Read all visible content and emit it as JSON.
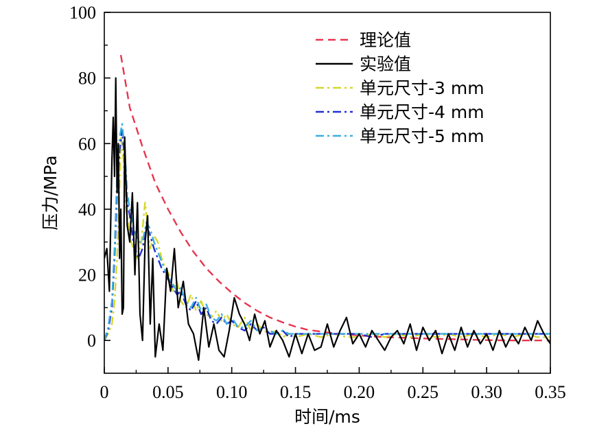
{
  "chart_data": {
    "type": "line",
    "xlabel": "时间/ms",
    "ylabel": "压力/MPa",
    "xlim": [
      0,
      0.35
    ],
    "ylim": [
      -10,
      100
    ],
    "xticks": [
      0,
      0.05,
      0.1,
      0.15,
      0.2,
      0.25,
      0.3,
      0.35
    ],
    "xtick_labels": [
      "0",
      "0.05",
      "0.10",
      "0.15",
      "0.20",
      "0.25",
      "0.30",
      "0.35"
    ],
    "yticks": [
      0,
      20,
      40,
      60,
      80,
      100
    ],
    "ytick_labels": [
      "0",
      "20",
      "40",
      "60",
      "80",
      "100"
    ],
    "grid": false,
    "legend_position": "top-right",
    "series": [
      {
        "name": "理论值",
        "color": "#e8344e",
        "style": "dashed",
        "x": [
          0.013,
          0.02,
          0.03,
          0.04,
          0.05,
          0.06,
          0.07,
          0.08,
          0.09,
          0.1,
          0.11,
          0.12,
          0.13,
          0.14,
          0.15,
          0.16,
          0.18,
          0.2,
          0.22,
          0.25,
          0.28,
          0.3,
          0.32,
          0.35
        ],
        "values": [
          87,
          71,
          59,
          48,
          40,
          33,
          27,
          22,
          18,
          14.5,
          11.5,
          9,
          7,
          5.5,
          4.2,
          3.2,
          2.2,
          1.5,
          1.0,
          0.6,
          0.3,
          0.1,
          0.0,
          0.0
        ]
      },
      {
        "name": "实验值",
        "color": "#000000",
        "style": "solid",
        "x": [
          0.0,
          0.002,
          0.004,
          0.006,
          0.007,
          0.008,
          0.009,
          0.01,
          0.011,
          0.012,
          0.013,
          0.014,
          0.015,
          0.016,
          0.018,
          0.02,
          0.022,
          0.024,
          0.026,
          0.028,
          0.03,
          0.032,
          0.034,
          0.036,
          0.038,
          0.04,
          0.043,
          0.046,
          0.049,
          0.052,
          0.055,
          0.058,
          0.062,
          0.066,
          0.07,
          0.074,
          0.078,
          0.082,
          0.086,
          0.09,
          0.094,
          0.098,
          0.102,
          0.106,
          0.11,
          0.114,
          0.118,
          0.122,
          0.126,
          0.13,
          0.135,
          0.14,
          0.145,
          0.15,
          0.155,
          0.16,
          0.165,
          0.17,
          0.175,
          0.18,
          0.185,
          0.19,
          0.195,
          0.2,
          0.205,
          0.21,
          0.215,
          0.22,
          0.225,
          0.23,
          0.235,
          0.24,
          0.245,
          0.25,
          0.255,
          0.26,
          0.265,
          0.27,
          0.275,
          0.28,
          0.285,
          0.29,
          0.295,
          0.3,
          0.305,
          0.31,
          0.315,
          0.32,
          0.325,
          0.33,
          0.335,
          0.34,
          0.345,
          0.35
        ],
        "values": [
          25,
          28,
          15,
          55,
          68,
          50,
          80,
          45,
          60,
          25,
          40,
          8,
          10,
          62,
          35,
          30,
          45,
          20,
          42,
          8,
          0,
          30,
          38,
          5,
          25,
          -5,
          5,
          -3,
          22,
          15,
          28,
          10,
          18,
          5,
          2,
          -6,
          10,
          -2,
          5,
          -3,
          -5,
          3,
          13,
          8,
          5,
          0,
          8,
          2,
          6,
          -2,
          3,
          0,
          -5,
          2,
          -4,
          2,
          -3,
          -2,
          5,
          -2,
          3,
          7,
          -1,
          2,
          -2,
          3,
          0,
          -3,
          1,
          3,
          -1,
          5,
          -3,
          4,
          0,
          3,
          -4,
          2,
          -3,
          4,
          -2,
          3,
          -1,
          2,
          -3,
          3,
          -2,
          2,
          -1,
          4,
          0,
          6,
          2,
          -1
        ]
      },
      {
        "name": "单元尺寸-3 mm",
        "color": "#d4d62c",
        "style": "dashdot",
        "x": [
          0.0,
          0.003,
          0.006,
          0.008,
          0.01,
          0.012,
          0.013,
          0.015,
          0.017,
          0.019,
          0.021,
          0.023,
          0.026,
          0.029,
          0.032,
          0.034,
          0.036,
          0.039,
          0.042,
          0.045,
          0.048,
          0.051,
          0.054,
          0.057,
          0.06,
          0.064,
          0.068,
          0.072,
          0.076,
          0.08,
          0.084,
          0.088,
          0.092,
          0.096,
          0.1,
          0.105,
          0.11,
          0.115,
          0.12,
          0.125,
          0.13,
          0.135,
          0.14,
          0.145,
          0.15,
          0.16,
          0.17,
          0.18,
          0.19,
          0.2,
          0.21,
          0.22,
          0.23,
          0.24,
          0.25,
          0.26,
          0.27,
          0.28,
          0.29,
          0.3,
          0.31,
          0.32,
          0.33,
          0.34,
          0.35
        ],
        "values": [
          0,
          2,
          5,
          12,
          25,
          48,
          62,
          55,
          40,
          35,
          30,
          28,
          25,
          30,
          42,
          35,
          28,
          32,
          30,
          25,
          22,
          20,
          15,
          18,
          12,
          10,
          14,
          9,
          12,
          8,
          7,
          9,
          6,
          8,
          5,
          4,
          7,
          3,
          5,
          3,
          2,
          3,
          1,
          2,
          1,
          2,
          1,
          2,
          1,
          1,
          2,
          1,
          2,
          1,
          2,
          1,
          2,
          1,
          2,
          1,
          2,
          1,
          2,
          1,
          1
        ]
      },
      {
        "name": "单元尺寸-4 mm",
        "color": "#1f2fd4",
        "style": "dashdot",
        "x": [
          0.0,
          0.003,
          0.006,
          0.008,
          0.01,
          0.012,
          0.014,
          0.016,
          0.018,
          0.02,
          0.022,
          0.024,
          0.027,
          0.03,
          0.033,
          0.036,
          0.039,
          0.042,
          0.045,
          0.048,
          0.051,
          0.054,
          0.057,
          0.06,
          0.064,
          0.068,
          0.072,
          0.076,
          0.08,
          0.084,
          0.088,
          0.092,
          0.096,
          0.1,
          0.105,
          0.11,
          0.115,
          0.12,
          0.125,
          0.13,
          0.135,
          0.14,
          0.145,
          0.15,
          0.16,
          0.17,
          0.18,
          0.19,
          0.2,
          0.21,
          0.22,
          0.23,
          0.24,
          0.25,
          0.26,
          0.27,
          0.28,
          0.29,
          0.3,
          0.31,
          0.32,
          0.33,
          0.34,
          0.35
        ],
        "values": [
          0,
          3,
          10,
          25,
          45,
          58,
          64,
          55,
          42,
          38,
          32,
          28,
          25,
          28,
          35,
          32,
          28,
          25,
          22,
          20,
          18,
          16,
          14,
          15,
          11,
          9,
          12,
          8,
          10,
          6,
          5,
          7,
          5,
          6,
          4,
          3,
          5,
          3,
          4,
          2,
          2,
          3,
          1,
          2,
          2,
          2,
          2,
          2,
          2,
          1,
          2,
          2,
          2,
          2,
          2,
          2,
          2,
          2,
          2,
          2,
          2,
          2,
          2,
          2
        ]
      },
      {
        "name": "单元尺寸-5 mm",
        "color": "#3aaee0",
        "style": "dashdot",
        "x": [
          0.0,
          0.003,
          0.006,
          0.008,
          0.01,
          0.012,
          0.014,
          0.016,
          0.018,
          0.02,
          0.022,
          0.024,
          0.027,
          0.03,
          0.033,
          0.036,
          0.039,
          0.042,
          0.045,
          0.048,
          0.051,
          0.054,
          0.057,
          0.06,
          0.064,
          0.068,
          0.072,
          0.076,
          0.08,
          0.084,
          0.088,
          0.092,
          0.096,
          0.1,
          0.105,
          0.11,
          0.115,
          0.12,
          0.125,
          0.13,
          0.135,
          0.14,
          0.145,
          0.15,
          0.16,
          0.17,
          0.18,
          0.19,
          0.2,
          0.21,
          0.22,
          0.23,
          0.24,
          0.25,
          0.26,
          0.27,
          0.28,
          0.29,
          0.3,
          0.31,
          0.32,
          0.33,
          0.34,
          0.35
        ],
        "values": [
          0,
          4,
          12,
          28,
          50,
          62,
          66,
          58,
          45,
          40,
          36,
          33,
          30,
          30,
          36,
          34,
          30,
          27,
          24,
          21,
          19,
          17,
          15,
          16,
          12,
          10,
          13,
          9,
          11,
          7,
          6,
          8,
          5,
          7,
          4,
          4,
          6,
          3,
          4,
          3,
          2,
          3,
          2,
          2,
          2,
          2,
          2,
          2,
          2,
          2,
          2,
          2,
          2,
          2,
          2,
          2,
          2,
          2,
          2,
          2,
          2,
          2,
          2,
          2
        ]
      }
    ]
  }
}
